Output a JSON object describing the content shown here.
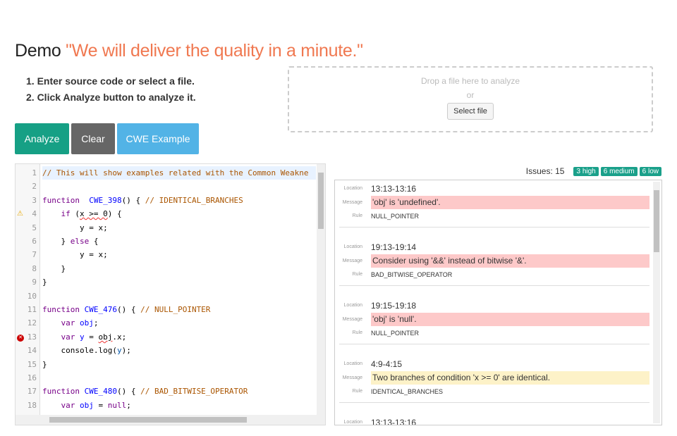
{
  "header": {
    "prefix": "Demo",
    "quote": "\"We will deliver the quality in a minute.\""
  },
  "steps": [
    "1. Enter source code or select a file.",
    "2. Click Analyze button to analyze it."
  ],
  "dropzone": {
    "text": "Drop a file here to analyze",
    "or": "or",
    "button": "Select file"
  },
  "buttons": {
    "analyze": "Analyze",
    "clear": "Clear",
    "example": "CWE Example"
  },
  "colors": {
    "analyze": "#16a085",
    "clear": "#666666",
    "example": "#52b3e6",
    "quote": "#f07850",
    "high": "#fdc9c9",
    "medium": "#fdf2c8",
    "badge": "#1aa08a"
  },
  "editor": {
    "markers": {
      "4": "warning-icon",
      "13": "error-icon"
    },
    "lines": [
      [
        [
          "c",
          "// This will show examples related with the Common Weakne"
        ]
      ],
      [],
      [
        [
          "k",
          "function"
        ],
        [
          "",
          "  "
        ],
        [
          "d",
          "CWE_398"
        ],
        [
          "",
          "() { "
        ],
        [
          "c",
          "// IDENTICAL_BRANCHES"
        ]
      ],
      [
        [
          "",
          "    "
        ],
        [
          "k",
          "if"
        ],
        [
          "",
          " ("
        ],
        [
          "sq",
          "x >= 0"
        ],
        [
          "",
          ") {"
        ]
      ],
      [
        [
          "",
          "        y = x;"
        ]
      ],
      [
        [
          "",
          "    } "
        ],
        [
          "k",
          "else"
        ],
        [
          "",
          " {"
        ]
      ],
      [
        [
          "",
          "        y = x;"
        ]
      ],
      [
        [
          "",
          "    }"
        ]
      ],
      [
        [
          "",
          "}"
        ]
      ],
      [],
      [
        [
          "k",
          "function"
        ],
        [
          "",
          " "
        ],
        [
          "d",
          "CWE_476"
        ],
        [
          "",
          "() { "
        ],
        [
          "c",
          "// NULL_POINTER"
        ]
      ],
      [
        [
          "",
          "    "
        ],
        [
          "k",
          "var"
        ],
        [
          "",
          " "
        ],
        [
          "d",
          "obj"
        ],
        [
          "",
          ";"
        ]
      ],
      [
        [
          "",
          "    "
        ],
        [
          "k",
          "var"
        ],
        [
          "",
          " "
        ],
        [
          "d",
          "y"
        ],
        [
          "",
          " = "
        ],
        [
          "sq",
          "obj"
        ],
        [
          "",
          ".x;"
        ]
      ],
      [
        [
          "",
          "    console.log("
        ],
        [
          "v",
          "y"
        ],
        [
          "",
          ");"
        ]
      ],
      [
        [
          "",
          "}"
        ]
      ],
      [],
      [
        [
          "k",
          "function"
        ],
        [
          "",
          " "
        ],
        [
          "d",
          "CWE_480"
        ],
        [
          "",
          "() { "
        ],
        [
          "c",
          "// BAD_BITWISE_OPERATOR"
        ]
      ],
      [
        [
          "",
          "    "
        ],
        [
          "k",
          "var"
        ],
        [
          "",
          " "
        ],
        [
          "d",
          "obj"
        ],
        [
          "",
          " = "
        ],
        [
          "k",
          "null"
        ],
        [
          "",
          ";"
        ]
      ]
    ]
  },
  "issues": {
    "label": "Issues: 15",
    "badges": [
      "3 high",
      "6 medium",
      "6 low"
    ],
    "field_labels": {
      "location": "Location",
      "message": "Message",
      "rule": "Rule"
    },
    "items": [
      {
        "location": "13:13-13:16",
        "message": "'obj' is 'undefined'.",
        "rule": "NULL_POINTER",
        "severity": "high"
      },
      {
        "location": "19:13-19:14",
        "message": "Consider using '&&' instead of bitwise '&'.",
        "rule": "BAD_BITWISE_OPERATOR",
        "severity": "high"
      },
      {
        "location": "19:15-19:18",
        "message": "'obj' is 'null'.",
        "rule": "NULL_POINTER",
        "severity": "high"
      },
      {
        "location": "4:9-4:15",
        "message": "Two branches of condition 'x >= 0' are identical.",
        "rule": "IDENTICAL_BRANCHES",
        "severity": "medium"
      },
      {
        "location": "13:13-13:16",
        "message": "",
        "rule": "",
        "severity": ""
      }
    ]
  }
}
